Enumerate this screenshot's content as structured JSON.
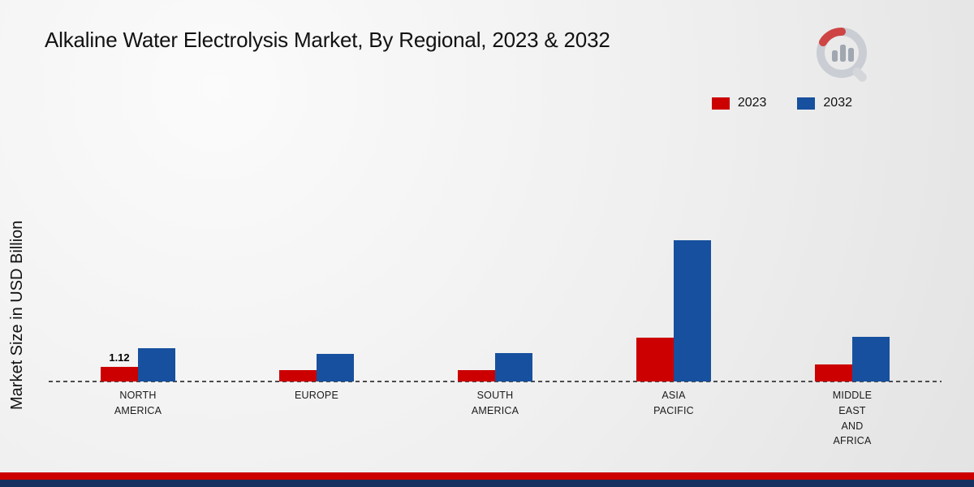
{
  "title": "Alkaline Water Electrolysis Market, By Regional, 2023 & 2032",
  "ylabel": "Market Size in USD Billion",
  "legend": [
    {
      "label": "2023",
      "color": "#cc0001"
    },
    {
      "label": "2032",
      "color": "#17509e"
    }
  ],
  "chart_data": {
    "type": "bar",
    "categories": [
      "NORTH AMERICA",
      "EUROPE",
      "SOUTH AMERICA",
      "ASIA PACIFIC",
      "MIDDLE EAST AND AFRICA"
    ],
    "series": [
      {
        "name": "2023",
        "color": "#cc0001",
        "values": [
          1.12,
          0.85,
          0.85,
          3.3,
          1.3
        ]
      },
      {
        "name": "2032",
        "color": "#17509e",
        "values": [
          2.5,
          2.05,
          2.1,
          10.55,
          3.35
        ]
      }
    ],
    "annotations": [
      {
        "series": "2023",
        "category": "NORTH AMERICA",
        "text": "1.12"
      }
    ],
    "title": "Alkaline Water Electrolysis Market, By Regional, 2023 & 2032",
    "xlabel": "",
    "ylabel": "Market Size in USD Billion",
    "ylim": [
      0,
      12
    ],
    "grid": false,
    "legend_position": "top-right",
    "baseline_style": "dashed"
  },
  "colors": {
    "footer_red": "#cc0001",
    "footer_navy": "#14315f",
    "logo_gray": "#c7cad2",
    "logo_red": "#cc3333"
  }
}
